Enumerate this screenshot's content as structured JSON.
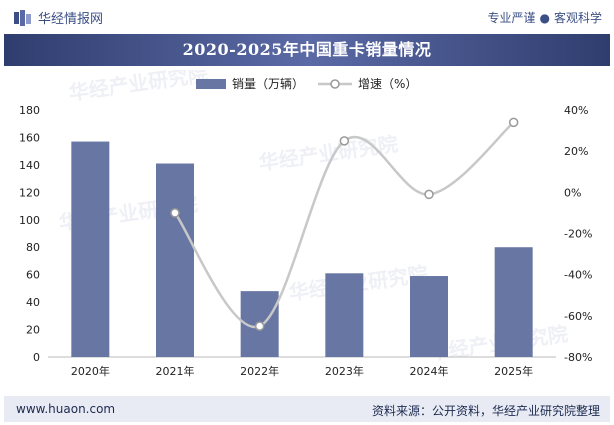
{
  "header": {
    "brand": "华经情报网",
    "tagline_left": "专业严谨",
    "tagline_sep": "●",
    "tagline_right": "客观科学"
  },
  "colors": {
    "bar": "#6876a4",
    "line": "#c8c8c8",
    "marker_stroke": "#999999",
    "title_bg": "#3a4a80",
    "axis_text": "#222222",
    "brand": "#3b4f86"
  },
  "chart_data": {
    "type": "bar",
    "title": "2020-2025年中国重卡销量情况",
    "categories": [
      "2020年",
      "2021年",
      "2022年",
      "2023年",
      "2024年",
      "2025年"
    ],
    "series": [
      {
        "name": "销量（万辆）",
        "type": "bar",
        "axis": "left",
        "values": [
          157,
          141,
          48,
          61,
          59,
          80
        ]
      },
      {
        "name": "增速（%）",
        "type": "line",
        "axis": "right",
        "values": [
          null,
          -10,
          -65,
          25,
          -1,
          34
        ]
      }
    ],
    "y_left": {
      "min": 0,
      "max": 180,
      "step": 20,
      "ticks": [
        "0",
        "20",
        "40",
        "60",
        "80",
        "100",
        "120",
        "140",
        "160",
        "180"
      ]
    },
    "y_right": {
      "min": -80,
      "max": 40,
      "step": 20,
      "ticks": [
        "-80%",
        "-60%",
        "-40%",
        "-20%",
        "0%",
        "20%",
        "40%"
      ]
    },
    "legend": "top-center",
    "grid": false
  },
  "watermark": "华经产业研究院",
  "footer": {
    "site": "www.huaon.com",
    "source": "资料来源：公开资料，华经产业研究院整理"
  }
}
